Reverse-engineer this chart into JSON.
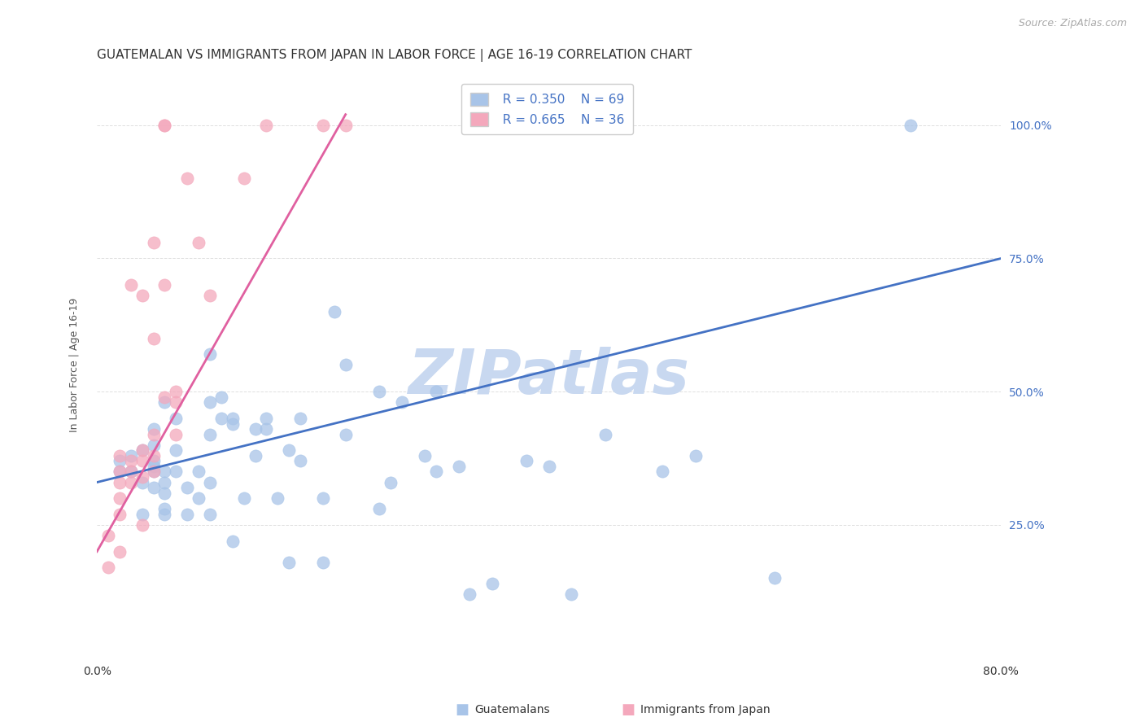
{
  "title": "GUATEMALAN VS IMMIGRANTS FROM JAPAN IN LABOR FORCE | AGE 16-19 CORRELATION CHART",
  "source": "Source: ZipAtlas.com",
  "ylabel": "In Labor Force | Age 16-19",
  "legend_label_blue": "Guatemalans",
  "legend_label_pink": "Immigrants from Japan",
  "legend_R_blue": "R = 0.350",
  "legend_N_blue": "N = 69",
  "legend_R_pink": "R = 0.665",
  "legend_N_pink": "N = 36",
  "blue_scatter_color": "#a8c4e8",
  "pink_scatter_color": "#f4a8bc",
  "blue_line_color": "#4472c4",
  "pink_line_color": "#e060a0",
  "watermark_text": "ZIPatlas",
  "watermark_color": "#c8d8f0",
  "blue_points_x": [
    0.02,
    0.02,
    0.03,
    0.03,
    0.04,
    0.04,
    0.04,
    0.05,
    0.05,
    0.05,
    0.05,
    0.05,
    0.05,
    0.06,
    0.06,
    0.06,
    0.06,
    0.06,
    0.06,
    0.07,
    0.07,
    0.07,
    0.08,
    0.08,
    0.09,
    0.09,
    0.1,
    0.1,
    0.1,
    0.1,
    0.1,
    0.11,
    0.11,
    0.12,
    0.12,
    0.12,
    0.13,
    0.14,
    0.14,
    0.15,
    0.15,
    0.16,
    0.17,
    0.17,
    0.18,
    0.18,
    0.2,
    0.2,
    0.21,
    0.22,
    0.22,
    0.25,
    0.25,
    0.26,
    0.27,
    0.29,
    0.3,
    0.3,
    0.32,
    0.33,
    0.35,
    0.38,
    0.4,
    0.42,
    0.45,
    0.5,
    0.53,
    0.6,
    0.72
  ],
  "blue_points_y": [
    0.37,
    0.35,
    0.35,
    0.38,
    0.39,
    0.33,
    0.27,
    0.35,
    0.36,
    0.37,
    0.4,
    0.43,
    0.32,
    0.35,
    0.33,
    0.27,
    0.28,
    0.31,
    0.48,
    0.39,
    0.35,
    0.45,
    0.32,
    0.27,
    0.3,
    0.35,
    0.33,
    0.42,
    0.48,
    0.27,
    0.57,
    0.45,
    0.49,
    0.45,
    0.44,
    0.22,
    0.3,
    0.43,
    0.38,
    0.43,
    0.45,
    0.3,
    0.18,
    0.39,
    0.45,
    0.37,
    0.3,
    0.18,
    0.65,
    0.55,
    0.42,
    0.5,
    0.28,
    0.33,
    0.48,
    0.38,
    0.5,
    0.35,
    0.36,
    0.12,
    0.14,
    0.37,
    0.36,
    0.12,
    0.42,
    0.35,
    0.38,
    0.15,
    1.0
  ],
  "pink_points_x": [
    0.01,
    0.01,
    0.02,
    0.02,
    0.02,
    0.02,
    0.02,
    0.02,
    0.03,
    0.03,
    0.03,
    0.03,
    0.04,
    0.04,
    0.04,
    0.04,
    0.04,
    0.05,
    0.05,
    0.05,
    0.05,
    0.05,
    0.06,
    0.06,
    0.06,
    0.06,
    0.07,
    0.07,
    0.07,
    0.08,
    0.09,
    0.1,
    0.13,
    0.15,
    0.2,
    0.22
  ],
  "pink_points_y": [
    0.23,
    0.17,
    0.38,
    0.33,
    0.3,
    0.35,
    0.27,
    0.2,
    0.37,
    0.35,
    0.33,
    0.7,
    0.37,
    0.34,
    0.39,
    0.68,
    0.25,
    0.42,
    0.35,
    0.38,
    0.78,
    0.6,
    0.7,
    0.49,
    1.0,
    1.0,
    0.5,
    0.48,
    0.42,
    0.9,
    0.78,
    0.68,
    0.9,
    1.0,
    1.0,
    1.0
  ],
  "blue_line_x": [
    0.0,
    0.8
  ],
  "blue_line_y": [
    0.33,
    0.75
  ],
  "pink_line_x": [
    0.0,
    0.22
  ],
  "pink_line_y": [
    0.2,
    1.02
  ],
  "xlim": [
    0.0,
    0.8
  ],
  "ylim": [
    0.0,
    1.1
  ],
  "yticks": [
    0.25,
    0.5,
    0.75,
    1.0
  ],
  "ytick_labels": [
    "25.0%",
    "50.0%",
    "75.0%",
    "100.0%"
  ],
  "xticks": [
    0.0,
    0.8
  ],
  "xtick_labels": [
    "0.0%",
    "80.0%"
  ],
  "background_color": "#ffffff",
  "grid_color": "#e0e0e0",
  "title_fontsize": 11,
  "source_fontsize": 9,
  "axis_label_fontsize": 9,
  "tick_fontsize": 10
}
